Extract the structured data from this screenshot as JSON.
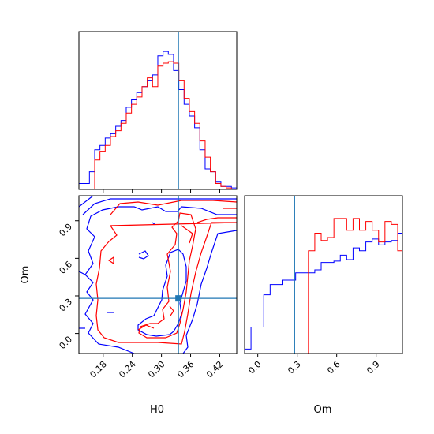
{
  "chart_data": {
    "type": "corner",
    "parameters": [
      "H0",
      "Om"
    ],
    "truth": {
      "H0": 0.335,
      "Om": 0.28
    },
    "colors": {
      "series_a": "#0000ff",
      "series_b": "#ff0000",
      "truth": "#1f77b4"
    },
    "panels": [
      {
        "id": "hist-H0",
        "type": "histogram",
        "param": "H0",
        "xlim": [
          0.13,
          0.455
        ],
        "ymax": 1.0,
        "bin_start": 0.13,
        "bin_width": 0.01083,
        "series": [
          {
            "color_key": "series_a",
            "counts": [
              0.04,
              0.04,
              0.12,
              0.27,
              0.3,
              0.35,
              0.38,
              0.43,
              0.47,
              0.56,
              0.61,
              0.66,
              0.7,
              0.74,
              0.78,
              0.91,
              0.94,
              0.92,
              0.81,
              0.68,
              0.58,
              0.5,
              0.42,
              0.27,
              0.14,
              0.12,
              0.05,
              0.02,
              0.02,
              0.01
            ]
          },
          {
            "color_key": "series_b",
            "counts": [
              0.0,
              0.0,
              0.0,
              0.2,
              0.26,
              0.3,
              0.36,
              0.4,
              0.45,
              0.52,
              0.58,
              0.63,
              0.7,
              0.76,
              0.7,
              0.84,
              0.86,
              0.87,
              0.86,
              0.74,
              0.62,
              0.53,
              0.45,
              0.33,
              0.22,
              0.12,
              0.04,
              0.02,
              0.01,
              0.0
            ]
          }
        ]
      },
      {
        "id": "contour-H0-Om",
        "type": "contour",
        "xparam": "H0",
        "yparam": "Om",
        "xlim": [
          0.13,
          0.455
        ],
        "ylim": [
          -0.16,
          1.1
        ],
        "xticks": [
          "0.18",
          "0.24",
          "0.30",
          "0.36",
          "0.42"
        ],
        "yticks": [
          "0.0",
          "0.3",
          "0.6",
          "0.9"
        ],
        "xlabel": "H0",
        "ylabel": "Om"
      },
      {
        "id": "hist-Om",
        "type": "histogram",
        "param": "Om",
        "xlim": [
          -0.1,
          1.1
        ],
        "ymax": 1.0,
        "xticks": [
          "0.0",
          "0.3",
          "0.6",
          "0.9"
        ],
        "xlabel": "Om",
        "bin_start": -0.1,
        "bin_width": 0.0485,
        "series": [
          {
            "color_key": "series_a",
            "counts": [
              0.03,
              0.18,
              0.18,
              0.4,
              0.47,
              0.47,
              0.5,
              0.5,
              0.55,
              0.55,
              0.55,
              0.57,
              0.62,
              0.62,
              0.63,
              0.67,
              0.64,
              0.72,
              0.7,
              0.76,
              0.78,
              0.74,
              0.76,
              0.77,
              0.82,
              0.86,
              0.83,
              0.88,
              0.82,
              0.2,
              0.08,
              0.03
            ]
          },
          {
            "color_key": "series_b",
            "counts": [
              0.0,
              0.0,
              0.0,
              0.0,
              0.0,
              0.0,
              0.0,
              0.0,
              0.0,
              0.0,
              0.7,
              0.82,
              0.77,
              0.79,
              0.92,
              0.92,
              0.84,
              0.92,
              0.84,
              0.9,
              0.84,
              0.76,
              0.9,
              0.88,
              0.7,
              0.78,
              0.76,
              0.75,
              0.82,
              0.78,
              0.7,
              0.0
            ]
          }
        ]
      }
    ]
  }
}
